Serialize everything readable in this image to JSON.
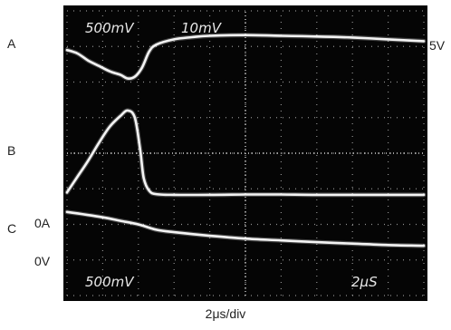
{
  "side_labels": {
    "a": "A",
    "b": "B",
    "c": "C",
    "five_v": "5V",
    "zero_a": "0A",
    "zero_v": "0V"
  },
  "scope": {
    "top_left_scale": "500mV",
    "top_mid_scale": "10mV",
    "bottom_left_scale": "500mV",
    "time_scale": "2μS"
  },
  "caption": "2μs/div",
  "chart_data": {
    "type": "line",
    "x_divisions": 10,
    "y_divisions": 8,
    "x_unit": "div",
    "grid": true,
    "series": [
      {
        "x": [
          0,
          0.3,
          0.6,
          0.9,
          1.2,
          1.5,
          1.7,
          1.9,
          2.1,
          2.3,
          2.5,
          3,
          3.5,
          4,
          5,
          6,
          7,
          8,
          9,
          10
        ],
        "y": [
          6.9,
          6.8,
          6.6,
          6.45,
          6.3,
          6.2,
          6.1,
          6.15,
          6.4,
          6.85,
          7.05,
          7.2,
          7.26,
          7.3,
          7.32,
          7.3,
          7.28,
          7.25,
          7.2,
          7.15
        ]
      },
      {
        "x": [
          0,
          0.3,
          0.6,
          0.9,
          1.2,
          1.5,
          1.7,
          1.9,
          2.05,
          2.15,
          2.3,
          2.5,
          3,
          4,
          5,
          6,
          7,
          8,
          9,
          10
        ],
        "y": [
          2.9,
          3.35,
          3.8,
          4.3,
          4.75,
          5.05,
          5.2,
          5.0,
          4.1,
          3.3,
          2.95,
          2.85,
          2.83,
          2.83,
          2.84,
          2.84,
          2.83,
          2.83,
          2.83,
          2.83
        ]
      },
      {
        "x": [
          0,
          1,
          1.5,
          2,
          2.5,
          3,
          4,
          5,
          6,
          7,
          8,
          9,
          10
        ],
        "y": [
          2.35,
          2.2,
          2.1,
          2.0,
          1.85,
          1.78,
          1.68,
          1.6,
          1.55,
          1.5,
          1.46,
          1.42,
          1.4
        ]
      }
    ]
  }
}
